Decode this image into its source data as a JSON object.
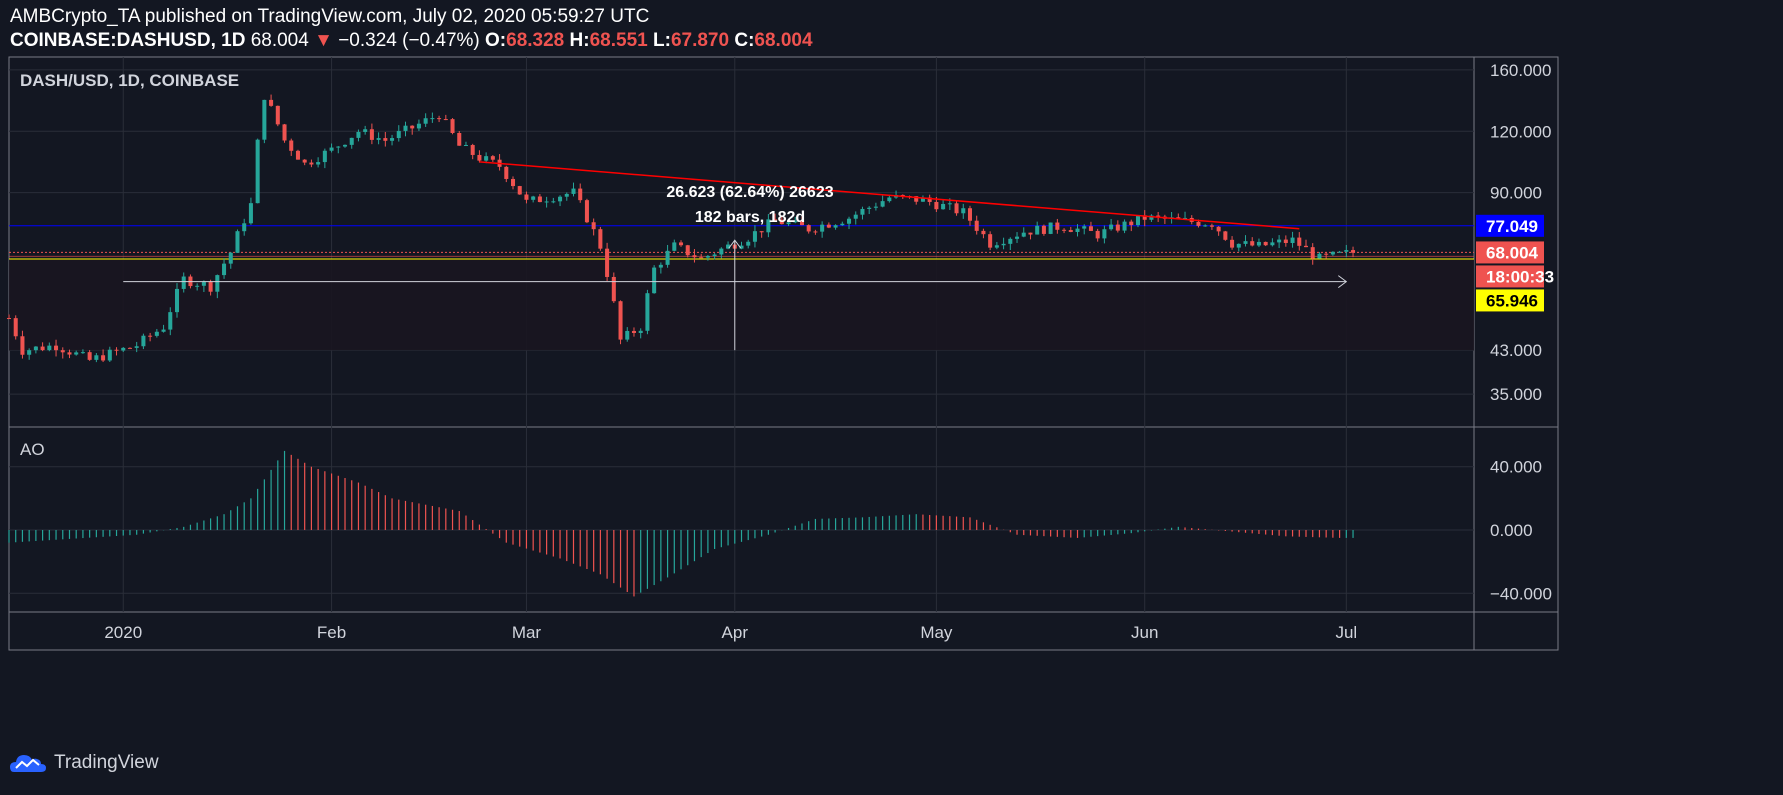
{
  "header": {
    "publisher_line": "AMBCrypto_TA published on TradingView.com, July 02, 2020 05:59:27 UTC",
    "symbol": "COINBASE:DASHUSD, 1D",
    "last": "68.004",
    "change_arrow": "▼",
    "change": "−0.324 (−0.47%)",
    "o_label": "O:",
    "o_value": "68.328",
    "h_label": "H:",
    "h_value": "68.551",
    "l_label": "L:",
    "l_value": "67.870",
    "c_label": "C:",
    "c_value": "68.004"
  },
  "footer": {
    "brand": "TradingView"
  },
  "colors": {
    "background": "#131722",
    "up": "#26a69a",
    "down": "#ef5350",
    "resistance_line": "#ff0000",
    "blue_level": "#0000ff",
    "yellow_level": "#ffff00",
    "grid": "#2a2e39"
  },
  "chart_data": [
    {
      "type": "candlestick",
      "title": "DASH/USD, 1D, COINBASE",
      "y_scale": "log",
      "ylim": [
        30,
        170
      ],
      "y_ticks": [
        "160.000",
        "120.000",
        "90.000",
        "43.000",
        "35.000"
      ],
      "x_ticks": [
        "2020",
        "Feb",
        "Mar",
        "Apr",
        "May",
        "Jun",
        "Jul"
      ],
      "x_range": [
        "2019-12-15",
        "2020-07-20"
      ],
      "price_tags": [
        {
          "label": "77.049",
          "value": 77.049,
          "bg": "#0000ff",
          "color": "#ffffff"
        },
        {
          "label": "68.004",
          "value": 68.004,
          "bg": "#ef5350",
          "color": "#ffffff"
        },
        {
          "label": "18:00:33",
          "value": 62.0,
          "bg": "#ef5350",
          "color": "#ffffff"
        },
        {
          "label": "65.946",
          "value": 59.3,
          "bg": "#ffff00",
          "color": "#000000"
        }
      ],
      "horizontal_lines": [
        {
          "name": "blue-level",
          "value": 77.049,
          "color": "#0000ff"
        },
        {
          "name": "yellow-level",
          "value": 65.946,
          "color": "#ffff00"
        },
        {
          "name": "last-price-line",
          "value": 68.004,
          "color": "#ef5350"
        }
      ],
      "trendline": {
        "from": [
          "2020-02-23",
          104
        ],
        "to": [
          "2020-06-24",
          76
        ],
        "color": "#ff0000"
      },
      "measure_tool": {
        "from_date": "2020-01-01",
        "to_date": "2020-07-01",
        "price_text": "26.623 (62.64%) 26623",
        "bars_text": "182 bars, 182d"
      },
      "anchors": [
        [
          "2019-12-15",
          50
        ],
        [
          "2019-12-17",
          43
        ],
        [
          "2019-12-22",
          44
        ],
        [
          "2019-12-27",
          41
        ],
        [
          "2020-01-03",
          44
        ],
        [
          "2020-01-07",
          48
        ],
        [
          "2020-01-10",
          60
        ],
        [
          "2020-01-14",
          58
        ],
        [
          "2020-01-17",
          68
        ],
        [
          "2020-01-20",
          85
        ],
        [
          "2020-01-22",
          142
        ],
        [
          "2020-01-25",
          115
        ],
        [
          "2020-01-28",
          103
        ],
        [
          "2020-02-01",
          110
        ],
        [
          "2020-02-05",
          120
        ],
        [
          "2020-02-09",
          115
        ],
        [
          "2020-02-13",
          122
        ],
        [
          "2020-02-17",
          130
        ],
        [
          "2020-02-20",
          112
        ],
        [
          "2020-02-23",
          106
        ],
        [
          "2020-02-26",
          102
        ],
        [
          "2020-03-01",
          86
        ],
        [
          "2020-03-04",
          88
        ],
        [
          "2020-03-08",
          90
        ],
        [
          "2020-03-12",
          70
        ],
        [
          "2020-03-15",
          45
        ],
        [
          "2020-03-18",
          48
        ],
        [
          "2020-03-20",
          63
        ],
        [
          "2020-03-23",
          70
        ],
        [
          "2020-03-27",
          66
        ],
        [
          "2020-03-30",
          69
        ],
        [
          "2020-04-03",
          73
        ],
        [
          "2020-04-07",
          79
        ],
        [
          "2020-04-12",
          76
        ],
        [
          "2020-04-18",
          80
        ],
        [
          "2020-04-24",
          88
        ],
        [
          "2020-04-29",
          87
        ],
        [
          "2020-05-05",
          82
        ],
        [
          "2020-05-09",
          71
        ],
        [
          "2020-05-14",
          75
        ],
        [
          "2020-05-20",
          77
        ],
        [
          "2020-05-25",
          74
        ],
        [
          "2020-06-01",
          80
        ],
        [
          "2020-06-06",
          79
        ],
        [
          "2020-06-11",
          78
        ],
        [
          "2020-06-14",
          71
        ],
        [
          "2020-06-18",
          70
        ],
        [
          "2020-06-23",
          72
        ],
        [
          "2020-06-27",
          66
        ],
        [
          "2020-07-02",
          68
        ]
      ]
    },
    {
      "type": "bar",
      "title": "AO",
      "ylim": [
        -50,
        55
      ],
      "y_ticks": [
        "40.000",
        "0.000",
        "−40.000"
      ],
      "y_tick_values": [
        40,
        0,
        -40
      ],
      "colors": {
        "rising": "#26a69a",
        "falling": "#ef5350"
      },
      "anchors": [
        [
          "2019-12-15",
          -8
        ],
        [
          "2020-01-03",
          -3
        ],
        [
          "2020-01-10",
          2
        ],
        [
          "2020-01-16",
          10
        ],
        [
          "2020-01-20",
          20
        ],
        [
          "2020-01-25",
          50
        ],
        [
          "2020-01-29",
          40
        ],
        [
          "2020-02-05",
          30
        ],
        [
          "2020-02-10",
          20
        ],
        [
          "2020-02-20",
          12
        ],
        [
          "2020-02-27",
          -8
        ],
        [
          "2020-03-06",
          -18
        ],
        [
          "2020-03-12",
          -28
        ],
        [
          "2020-03-17",
          -42
        ],
        [
          "2020-03-22",
          -30
        ],
        [
          "2020-03-29",
          -12
        ],
        [
          "2020-04-06",
          -3
        ],
        [
          "2020-04-13",
          7
        ],
        [
          "2020-04-20",
          8
        ],
        [
          "2020-04-28",
          10
        ],
        [
          "2020-05-06",
          8
        ],
        [
          "2020-05-13",
          -3
        ],
        [
          "2020-05-22",
          -5
        ],
        [
          "2020-05-30",
          -2
        ],
        [
          "2020-06-06",
          2
        ],
        [
          "2020-06-14",
          -1
        ],
        [
          "2020-06-22",
          -4
        ],
        [
          "2020-06-30",
          -5
        ],
        [
          "2020-07-02",
          -5
        ]
      ]
    }
  ]
}
